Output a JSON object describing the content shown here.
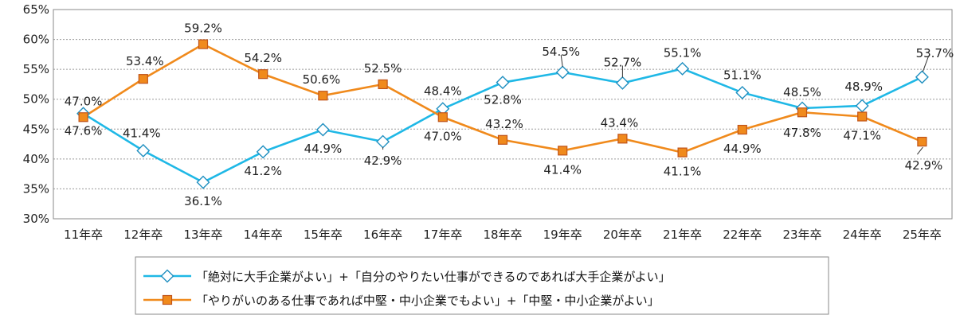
{
  "chart_data": {
    "type": "line",
    "categories": [
      "11年卒",
      "12年卒",
      "13年卒",
      "14年卒",
      "15年卒",
      "16年卒",
      "17年卒",
      "18年卒",
      "19年卒",
      "20年卒",
      "21年卒",
      "22年卒",
      "23年卒",
      "24年卒",
      "25年卒"
    ],
    "y_ticks": [
      "30%",
      "35%",
      "40%",
      "45%",
      "50%",
      "55%",
      "60%",
      "65%"
    ],
    "ylim": [
      30,
      65
    ],
    "grid": "horizontal-dashed",
    "legend_position": "bottom",
    "series": [
      {
        "name": "「絶対に大手企業がよい」+「自分のやりたい仕事ができるのであれば大手企業がよい」",
        "color": "#1fb8e6",
        "marker": "diamond",
        "values": [
          47.6,
          41.4,
          36.1,
          41.2,
          44.9,
          42.9,
          48.4,
          52.8,
          54.5,
          52.7,
          55.1,
          51.1,
          48.5,
          48.9,
          53.7
        ],
        "labels": [
          "47.6%",
          "41.4%",
          "36.1%",
          "41.2%",
          "44.9%",
          "42.9%",
          "48.4%",
          "52.8%",
          "54.5%",
          "52.7%",
          "55.1%",
          "51.1%",
          "48.5%",
          "48.9%",
          "53.7%"
        ]
      },
      {
        "name": "「やりがいのある仕事であれば中堅・中小企業でもよい」+「中堅・中小企業がよい」",
        "color": "#f08a1c",
        "marker": "square",
        "values": [
          47.0,
          53.4,
          59.2,
          54.2,
          50.6,
          52.5,
          47.0,
          43.2,
          41.4,
          43.4,
          41.1,
          44.9,
          47.8,
          47.1,
          42.9
        ],
        "labels": [
          "47.0%",
          "53.4%",
          "59.2%",
          "54.2%",
          "50.6%",
          "52.5%",
          "47.0%",
          "43.2%",
          "41.4%",
          "43.4%",
          "41.1%",
          "44.9%",
          "47.8%",
          "47.1%",
          "42.9%"
        ]
      }
    ]
  }
}
